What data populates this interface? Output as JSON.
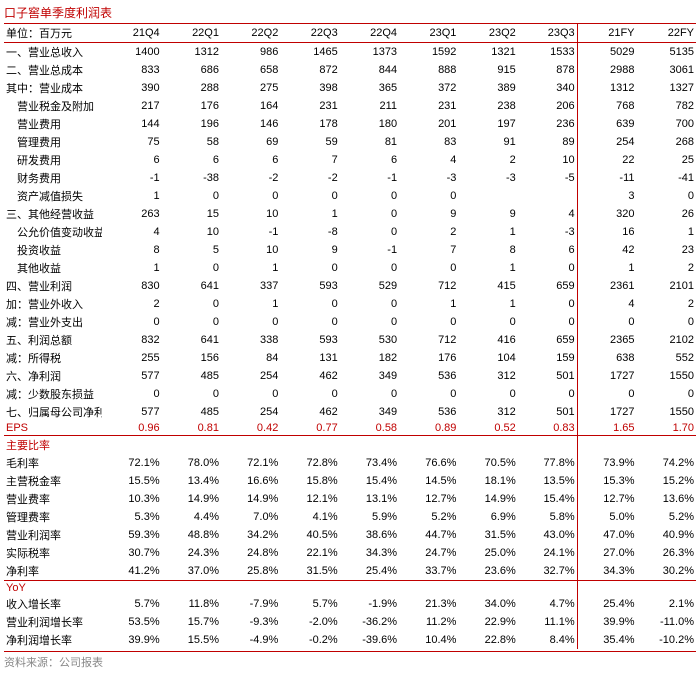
{
  "title": "口子窖单季度利润表",
  "unit_label": "单位：百万元",
  "source_label": "资料来源：公司报表",
  "periods": [
    "21Q4",
    "22Q1",
    "22Q2",
    "22Q3",
    "22Q4",
    "23Q1",
    "23Q2",
    "23Q3",
    "21FY",
    "22FY"
  ],
  "rows": [
    {
      "label": "一、营业总收入",
      "v": [
        "1400",
        "1312",
        "986",
        "1465",
        "1373",
        "1592",
        "1321",
        "1533",
        "5029",
        "5135"
      ]
    },
    {
      "label": "二、营业总成本",
      "v": [
        "833",
        "686",
        "658",
        "872",
        "844",
        "888",
        "915",
        "878",
        "2988",
        "3061"
      ]
    },
    {
      "label": "其中：营业成本",
      "v": [
        "390",
        "288",
        "275",
        "398",
        "365",
        "372",
        "389",
        "340",
        "1312",
        "1327"
      ]
    },
    {
      "label": "　营业税金及附加",
      "v": [
        "217",
        "176",
        "164",
        "231",
        "211",
        "231",
        "238",
        "206",
        "768",
        "782"
      ]
    },
    {
      "label": "　营业费用",
      "v": [
        "144",
        "196",
        "146",
        "178",
        "180",
        "201",
        "197",
        "236",
        "639",
        "700"
      ]
    },
    {
      "label": "　管理费用",
      "v": [
        "75",
        "58",
        "69",
        "59",
        "81",
        "83",
        "91",
        "89",
        "254",
        "268"
      ]
    },
    {
      "label": "　研发费用",
      "v": [
        "6",
        "6",
        "6",
        "7",
        "6",
        "4",
        "2",
        "10",
        "22",
        "25"
      ]
    },
    {
      "label": "　财务费用",
      "v": [
        "-1",
        "-38",
        "-2",
        "-2",
        "-1",
        "-3",
        "-3",
        "-5",
        "-11",
        "-41"
      ]
    },
    {
      "label": "　资产减值损失",
      "v": [
        "1",
        "0",
        "0",
        "0",
        "0",
        "0",
        "",
        "",
        "3",
        "0"
      ]
    },
    {
      "label": "三、其他经营收益",
      "v": [
        "263",
        "15",
        "10",
        "1",
        "0",
        "9",
        "9",
        "4",
        "320",
        "26"
      ]
    },
    {
      "label": "　公允价值变动收益",
      "v": [
        "4",
        "10",
        "-1",
        "-8",
        "0",
        "2",
        "1",
        "-3",
        "16",
        "1"
      ]
    },
    {
      "label": "　投资收益",
      "v": [
        "8",
        "5",
        "10",
        "9",
        "-1",
        "7",
        "8",
        "6",
        "42",
        "23"
      ]
    },
    {
      "label": "　其他收益",
      "v": [
        "1",
        "0",
        "1",
        "0",
        "0",
        "0",
        "1",
        "0",
        "1",
        "2"
      ]
    },
    {
      "label": "四、营业利润",
      "v": [
        "830",
        "641",
        "337",
        "593",
        "529",
        "712",
        "415",
        "659",
        "2361",
        "2101"
      ]
    },
    {
      "label": "加：营业外收入",
      "v": [
        "2",
        "0",
        "1",
        "0",
        "0",
        "1",
        "1",
        "0",
        "4",
        "2"
      ]
    },
    {
      "label": "减：营业外支出",
      "v": [
        "0",
        "0",
        "0",
        "0",
        "0",
        "0",
        "0",
        "0",
        "0",
        "0"
      ]
    },
    {
      "label": "五、利润总额",
      "v": [
        "832",
        "641",
        "338",
        "593",
        "530",
        "712",
        "416",
        "659",
        "2365",
        "2102"
      ]
    },
    {
      "label": "减：所得税",
      "v": [
        "255",
        "156",
        "84",
        "131",
        "182",
        "176",
        "104",
        "159",
        "638",
        "552"
      ]
    },
    {
      "label": "六、净利润",
      "v": [
        "577",
        "485",
        "254",
        "462",
        "349",
        "536",
        "312",
        "501",
        "1727",
        "1550"
      ]
    },
    {
      "label": "减：少数股东损益",
      "v": [
        "0",
        "0",
        "0",
        "0",
        "0",
        "0",
        "0",
        "0",
        "0",
        "0"
      ]
    },
    {
      "label": "七、归属母公司净利润",
      "v": [
        "577",
        "485",
        "254",
        "462",
        "349",
        "536",
        "312",
        "501",
        "1727",
        "1550"
      ]
    }
  ],
  "eps": {
    "label": "EPS",
    "v": [
      "0.96",
      "0.81",
      "0.42",
      "0.77",
      "0.58",
      "0.89",
      "0.52",
      "0.83",
      "1.65",
      "1.70"
    ]
  },
  "ratio_header": "主要比率",
  "ratios": [
    {
      "label": "毛利率",
      "v": [
        "72.1%",
        "78.0%",
        "72.1%",
        "72.8%",
        "73.4%",
        "76.6%",
        "70.5%",
        "77.8%",
        "73.9%",
        "74.2%"
      ]
    },
    {
      "label": "主营税金率",
      "v": [
        "15.5%",
        "13.4%",
        "16.6%",
        "15.8%",
        "15.4%",
        "14.5%",
        "18.1%",
        "13.5%",
        "15.3%",
        "15.2%"
      ]
    },
    {
      "label": "营业费率",
      "v": [
        "10.3%",
        "14.9%",
        "14.9%",
        "12.1%",
        "13.1%",
        "12.7%",
        "14.9%",
        "15.4%",
        "12.7%",
        "13.6%"
      ]
    },
    {
      "label": "管理费率",
      "v": [
        "5.3%",
        "4.4%",
        "7.0%",
        "4.1%",
        "5.9%",
        "5.2%",
        "6.9%",
        "5.8%",
        "5.0%",
        "5.2%"
      ]
    },
    {
      "label": "营业利润率",
      "v": [
        "59.3%",
        "48.8%",
        "34.2%",
        "40.5%",
        "38.6%",
        "44.7%",
        "31.5%",
        "43.0%",
        "47.0%",
        "40.9%"
      ]
    },
    {
      "label": "实际税率",
      "v": [
        "30.7%",
        "24.3%",
        "24.8%",
        "22.1%",
        "34.3%",
        "24.7%",
        "25.0%",
        "24.1%",
        "27.0%",
        "26.3%"
      ]
    },
    {
      "label": "净利率",
      "v": [
        "41.2%",
        "37.0%",
        "25.8%",
        "31.5%",
        "25.4%",
        "33.7%",
        "23.6%",
        "32.7%",
        "34.3%",
        "30.2%"
      ]
    }
  ],
  "yoy_header": "YoY",
  "yoy": [
    {
      "label": "收入增长率",
      "v": [
        "5.7%",
        "11.8%",
        "-7.9%",
        "5.7%",
        "-1.9%",
        "21.3%",
        "34.0%",
        "4.7%",
        "25.4%",
        "2.1%"
      ]
    },
    {
      "label": "营业利润增长率",
      "v": [
        "53.5%",
        "15.7%",
        "-9.3%",
        "-2.0%",
        "-36.2%",
        "11.2%",
        "22.9%",
        "11.1%",
        "39.9%",
        "-11.0%"
      ]
    },
    {
      "label": "净利润增长率",
      "v": [
        "39.9%",
        "15.5%",
        "-4.9%",
        "-0.2%",
        "-39.6%",
        "10.4%",
        "22.8%",
        "8.4%",
        "35.4%",
        "-10.2%"
      ]
    }
  ]
}
